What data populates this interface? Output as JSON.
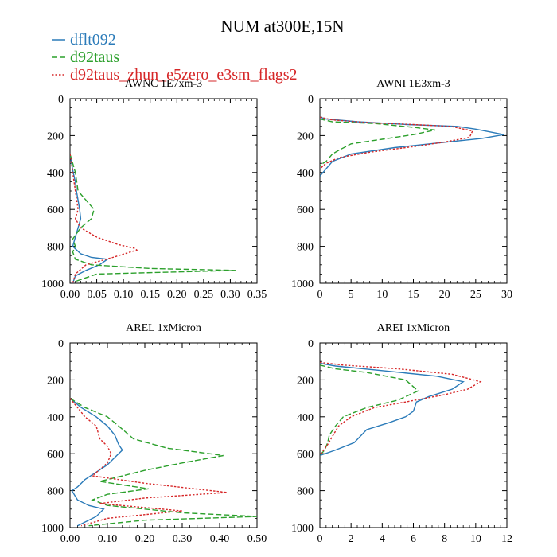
{
  "title": "NUM at300E,15N",
  "legend": [
    {
      "label": "dflt092",
      "color": "#2b7bb9",
      "dash": "solid"
    },
    {
      "label": "d92taus",
      "color": "#2ca02c",
      "dash": "dashed"
    },
    {
      "label": "d92taus_zhun_e5zero_e3sm_flags2",
      "color": "#d62728",
      "dash": "dotted"
    }
  ],
  "chart_data": [
    {
      "type": "line",
      "title": "AWNC  1E7xm-3",
      "xlim": [
        0,
        0.35
      ],
      "ylim": [
        1000,
        0
      ],
      "xticks": [
        0,
        0.05,
        0.1,
        0.15,
        0.2,
        0.25,
        0.3,
        0.35
      ],
      "xtick_labels": [
        "0.00",
        "0.05",
        "0.10",
        "0.15",
        "0.20",
        "0.25",
        "0.30",
        "0.35"
      ],
      "yticks": [
        0,
        200,
        400,
        600,
        800,
        1000
      ],
      "ytick_labels": [
        "0",
        "200",
        "400",
        "600",
        "800",
        "1000"
      ],
      "series": [
        {
          "name": "dflt092",
          "x": [
            0,
            0.003,
            0.006,
            0.01,
            0.012,
            0.015,
            0.018,
            0.02,
            0.015,
            0.01,
            0.005,
            0.02,
            0.04,
            0.07,
            0.055,
            0.03,
            0.01,
            0.005
          ],
          "y": [
            300,
            350,
            400,
            450,
            500,
            550,
            600,
            650,
            700,
            750,
            800,
            840,
            860,
            870,
            900,
            930,
            960,
            1000
          ]
        },
        {
          "name": "d92taus",
          "x": [
            0,
            0.005,
            0.01,
            0.015,
            0.03,
            0.045,
            0.04,
            0.02,
            0.005,
            0.01,
            0.005,
            0.01,
            0.04,
            0.15,
            0.31,
            0.05,
            0.01
          ],
          "y": [
            300,
            350,
            400,
            500,
            550,
            600,
            650,
            700,
            760,
            800,
            830,
            870,
            900,
            920,
            930,
            950,
            990
          ]
        },
        {
          "name": "d92taus_zhun_e5zero_e3sm_flags2",
          "x": [
            0,
            0.003,
            0.005,
            0.01,
            0.015,
            0.01,
            0.02,
            0.05,
            0.09,
            0.12,
            0.125,
            0.08,
            0.03,
            0.01,
            0.005
          ],
          "y": [
            300,
            350,
            400,
            500,
            600,
            650,
            700,
            750,
            790,
            810,
            820,
            860,
            900,
            950,
            1000
          ]
        }
      ]
    },
    {
      "type": "line",
      "title": "AWNI  1E3xm-3",
      "xlim": [
        0,
        30
      ],
      "ylim": [
        1000,
        0
      ],
      "xticks": [
        0,
        5,
        10,
        15,
        20,
        25,
        30
      ],
      "xtick_labels": [
        "0",
        "5",
        "10",
        "15",
        "20",
        "25",
        "30"
      ],
      "yticks": [
        0,
        200,
        400,
        600,
        800,
        1000
      ],
      "ytick_labels": [
        "0",
        "200",
        "400",
        "600",
        "800",
        "1000"
      ],
      "series": [
        {
          "name": "dflt092",
          "x": [
            0,
            1,
            6,
            14,
            22,
            25,
            29.5,
            26,
            19,
            12,
            5,
            2,
            1,
            0
          ],
          "y": [
            100,
            110,
            125,
            140,
            150,
            165,
            195,
            215,
            240,
            265,
            300,
            340,
            380,
            420
          ]
        },
        {
          "name": "d92taus",
          "x": [
            0,
            2,
            9,
            15,
            18.5,
            15,
            10,
            5,
            3,
            2,
            1,
            0
          ],
          "y": [
            110,
            125,
            135,
            155,
            170,
            195,
            220,
            245,
            280,
            300,
            340,
            360
          ]
        },
        {
          "name": "d92taus_zhun_e5zero_e3sm_flags2",
          "x": [
            0,
            2,
            8,
            15,
            21,
            24.5,
            24,
            20,
            15,
            8,
            3,
            1,
            0
          ],
          "y": [
            100,
            115,
            130,
            140,
            150,
            175,
            210,
            235,
            260,
            290,
            320,
            350,
            380
          ]
        }
      ]
    },
    {
      "type": "line",
      "title": "AREL  1xMicron",
      "xlim": [
        0,
        0.5
      ],
      "ylim": [
        1000,
        0
      ],
      "xticks": [
        0,
        0.1,
        0.2,
        0.3,
        0.4,
        0.5
      ],
      "xtick_labels": [
        "0.00",
        "0.10",
        "0.20",
        "0.30",
        "0.40",
        "0.50"
      ],
      "yticks": [
        0,
        200,
        400,
        600,
        800,
        1000
      ],
      "ytick_labels": [
        "0",
        "200",
        "400",
        "600",
        "800",
        "1000"
      ],
      "series": [
        {
          "name": "dflt092",
          "x": [
            0,
            0.03,
            0.07,
            0.1,
            0.12,
            0.13,
            0.14,
            0.12,
            0.1,
            0.07,
            0.04,
            0.02,
            0.005,
            0.02,
            0.05,
            0.09,
            0.07,
            0.02
          ],
          "y": [
            300,
            350,
            400,
            450,
            500,
            550,
            580,
            620,
            660,
            700,
            740,
            780,
            800,
            850,
            880,
            900,
            940,
            990
          ]
        },
        {
          "name": "d92taus",
          "x": [
            0,
            0.04,
            0.1,
            0.13,
            0.17,
            0.26,
            0.41,
            0.3,
            0.2,
            0.08,
            0.21,
            0.1,
            0.06,
            0.1,
            0.2,
            0.3,
            0.5,
            0.2,
            0.05
          ],
          "y": [
            300,
            350,
            400,
            450,
            520,
            570,
            610,
            650,
            690,
            750,
            790,
            820,
            850,
            880,
            900,
            920,
            940,
            960,
            990
          ]
        },
        {
          "name": "d92taus_zhun_e5zero_e3sm_flags2",
          "x": [
            0,
            0.02,
            0.04,
            0.07,
            0.08,
            0.1,
            0.11,
            0.1,
            0.06,
            0.2,
            0.42,
            0.2,
            0.08,
            0.3,
            0.1,
            0.03
          ],
          "y": [
            300,
            350,
            400,
            450,
            520,
            560,
            600,
            650,
            720,
            760,
            810,
            840,
            870,
            910,
            950,
            990
          ]
        }
      ]
    },
    {
      "type": "line",
      "title": "AREI  1xMicron",
      "xlim": [
        0,
        12
      ],
      "ylim": [
        1000,
        0
      ],
      "xticks": [
        0,
        2,
        4,
        6,
        8,
        10,
        12
      ],
      "xtick_labels": [
        "0",
        "2",
        "4",
        "6",
        "8",
        "10",
        "12"
      ],
      "yticks": [
        0,
        200,
        400,
        600,
        800,
        1000
      ],
      "ytick_labels": [
        "0",
        "200",
        "400",
        "600",
        "800",
        "1000"
      ],
      "series": [
        {
          "name": "dflt092",
          "x": [
            0,
            1,
            4,
            7.5,
            9.2,
            8.5,
            7,
            6.2,
            6,
            5.5,
            4.5,
            3,
            2.2,
            1,
            0
          ],
          "y": [
            110,
            125,
            150,
            180,
            210,
            250,
            290,
            320,
            370,
            400,
            430,
            470,
            540,
            580,
            610
          ]
        },
        {
          "name": "d92taus",
          "x": [
            0,
            1,
            3,
            5.5,
            6.3,
            5,
            3,
            1.5,
            1,
            0.6,
            0.5,
            0.3,
            0
          ],
          "y": [
            120,
            140,
            160,
            200,
            260,
            310,
            350,
            400,
            450,
            500,
            540,
            580,
            610
          ]
        },
        {
          "name": "d92taus_zhun_e5zero_e3sm_flags2",
          "x": [
            0,
            1.5,
            5,
            8.5,
            10.3,
            9.5,
            8,
            5.5,
            3.5,
            2,
            1.2,
            0.5,
            0
          ],
          "y": [
            105,
            120,
            140,
            170,
            210,
            250,
            280,
            320,
            350,
            400,
            450,
            550,
            610
          ]
        }
      ]
    }
  ]
}
